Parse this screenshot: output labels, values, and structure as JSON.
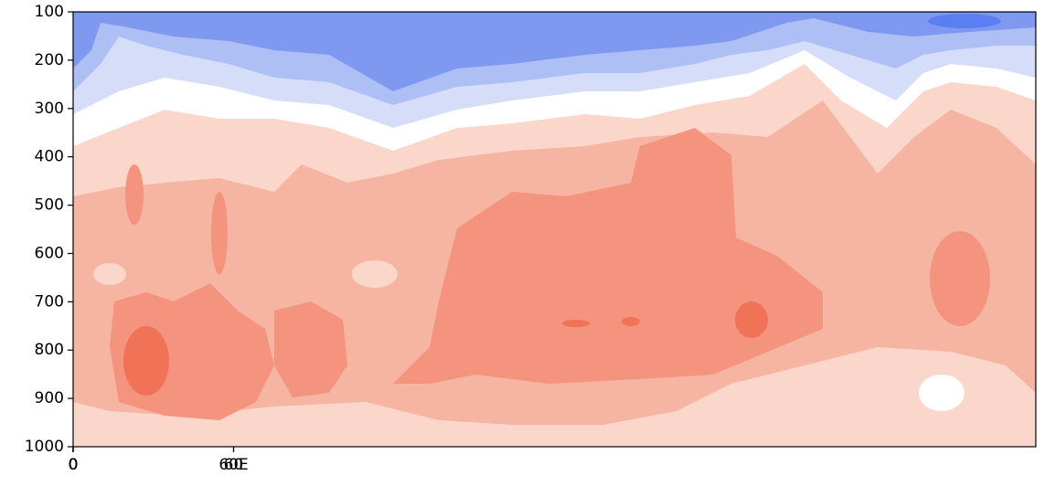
{
  "chart_data": {
    "type": "contour",
    "xlim": [
      0,
      360
    ],
    "xticks": [
      0,
      60,
      {
        "value": 60,
        "label": "60E"
      },
      0,
      0,
      0,
      0
    ],
    "ylim": [
      1000,
      100
    ],
    "yticks": [
      100,
      200,
      300,
      400,
      500,
      600,
      700,
      800,
      900,
      1000
    ]
  }
}
